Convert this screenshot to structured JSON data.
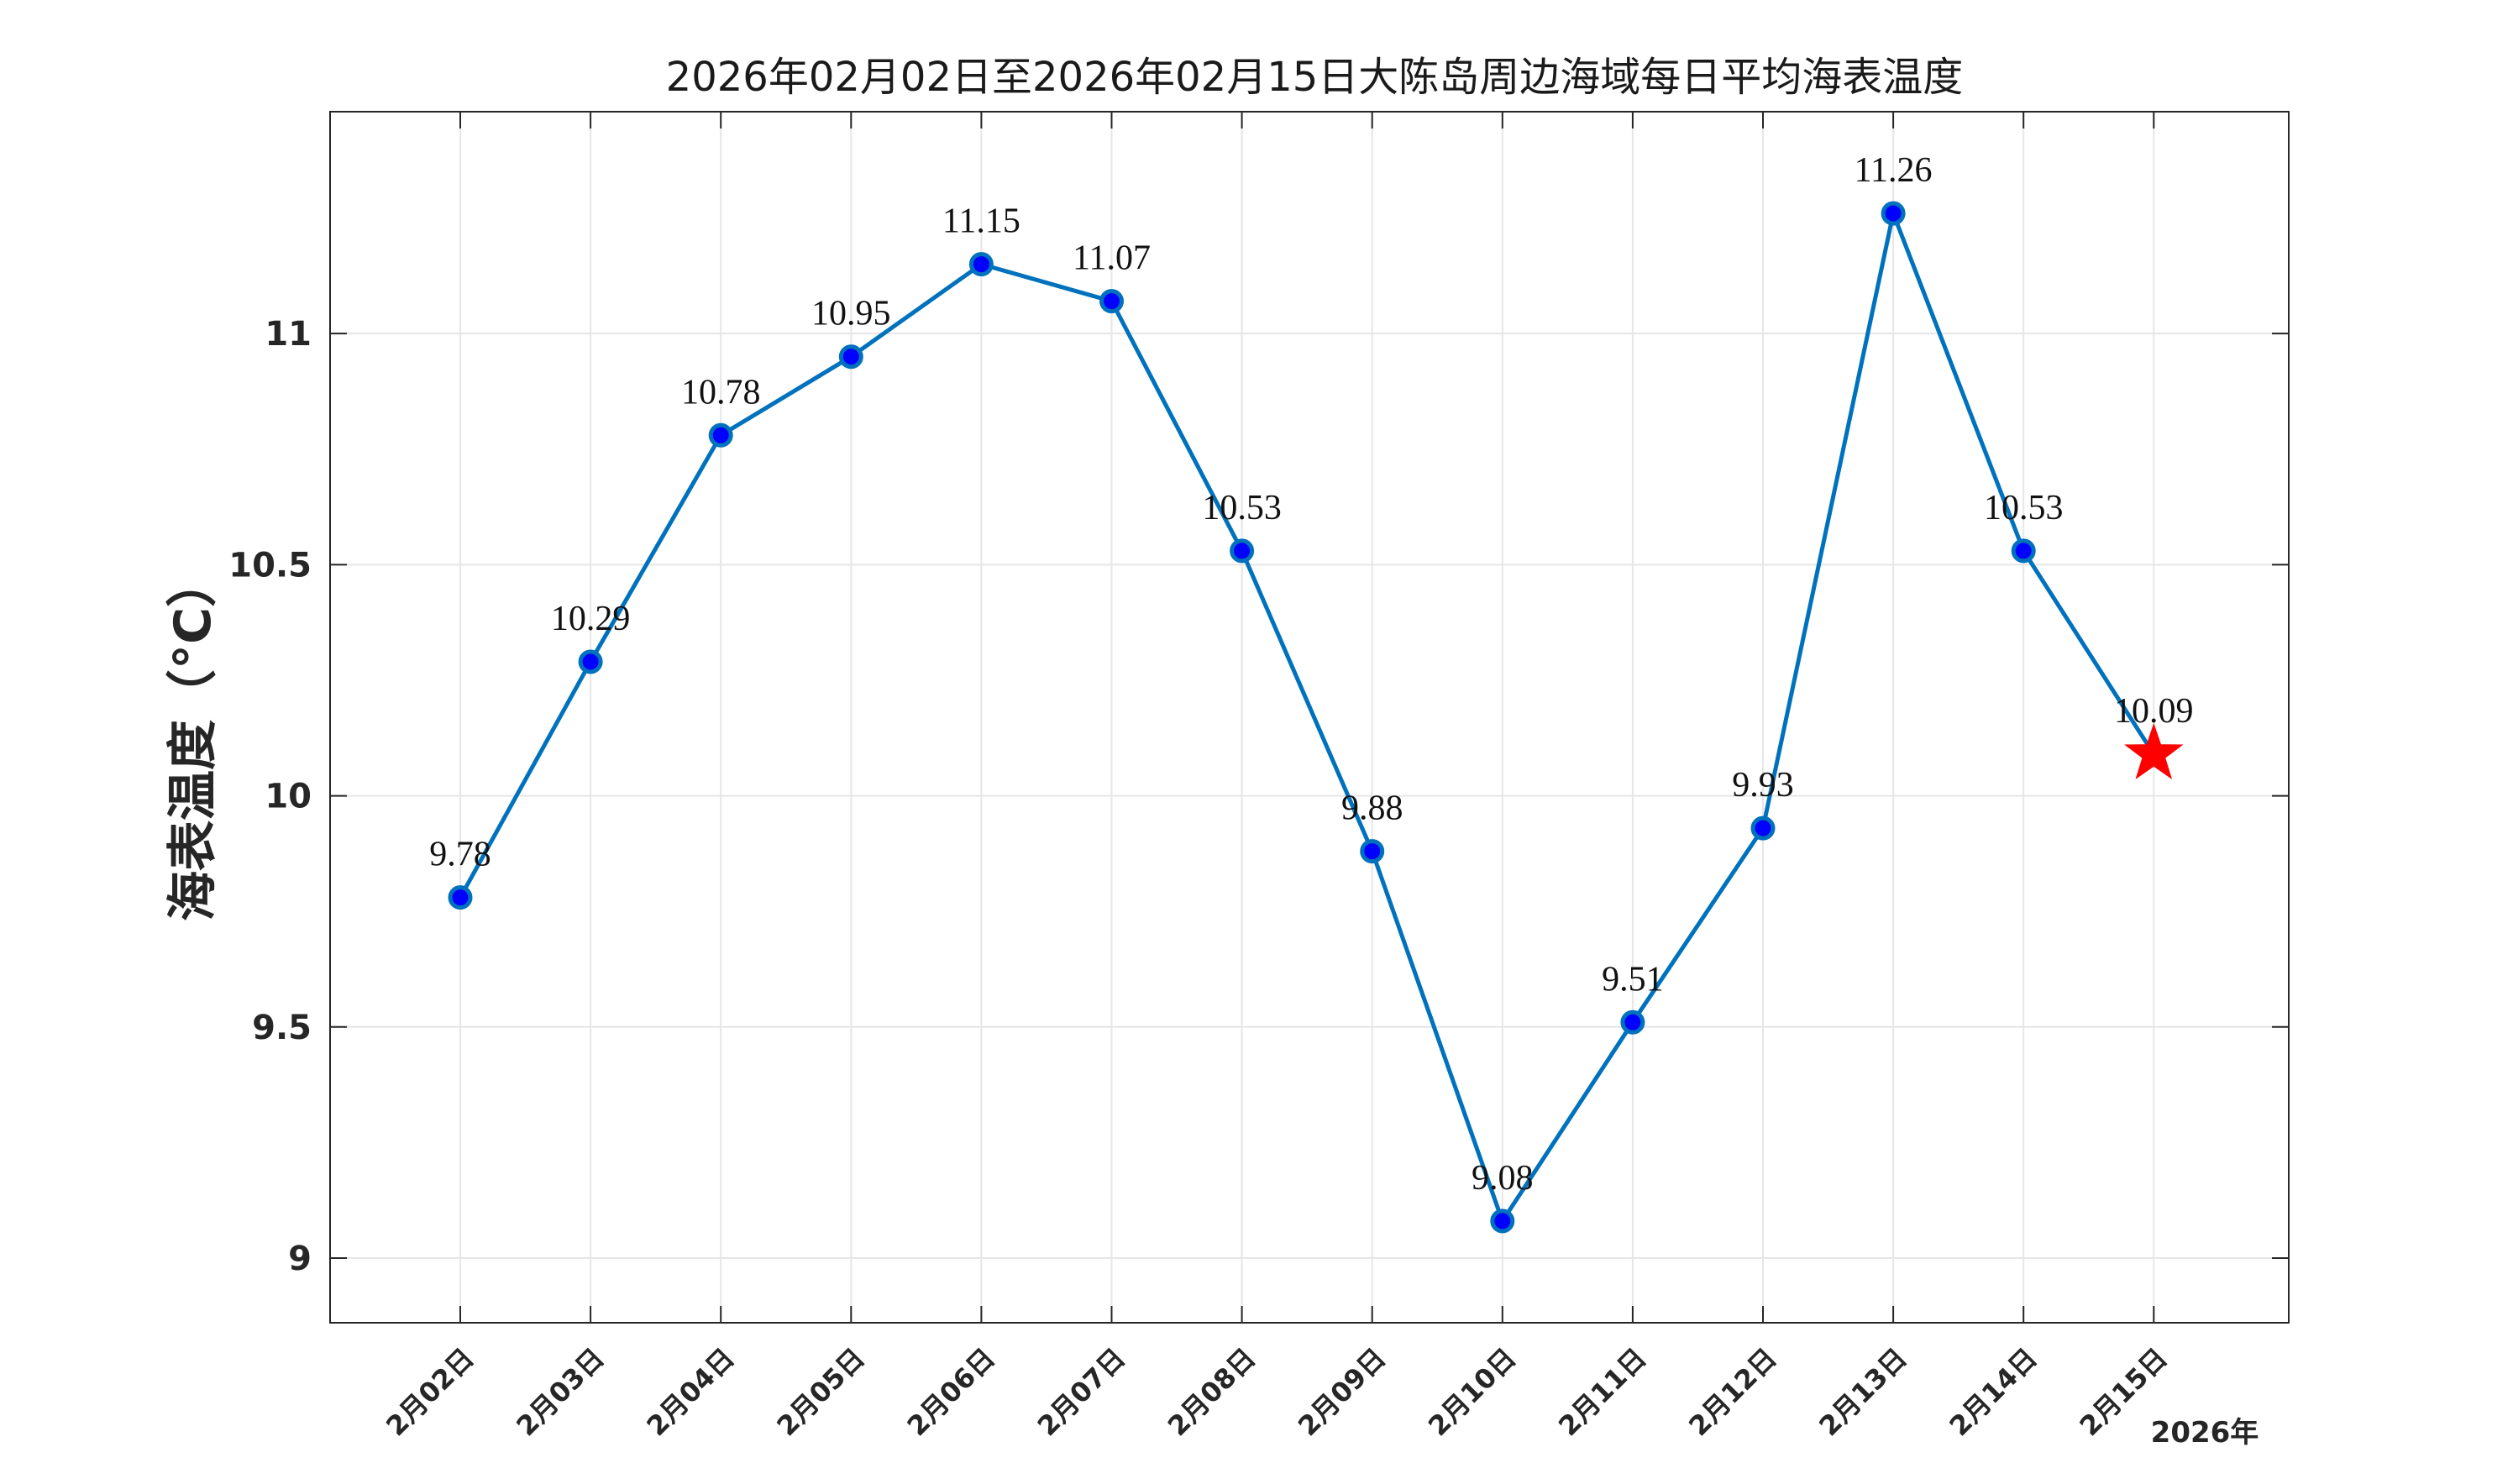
{
  "chart_data": {
    "type": "line",
    "title": "2026年02月02日至2026年02月15日大陈岛周边海域每日平均海表温度",
    "ylabel": "海表温度（°C）",
    "xlabel": "",
    "year_label": "2026年",
    "categories": [
      "2月02日",
      "2月03日",
      "2月04日",
      "2月05日",
      "2月06日",
      "2月07日",
      "2月08日",
      "2月09日",
      "2月10日",
      "2月11日",
      "2月12日",
      "2月13日",
      "2月14日",
      "2月15日"
    ],
    "series": [
      {
        "values": [
          9.78,
          10.29,
          10.78,
          10.95,
          11.15,
          11.07,
          10.53,
          9.88,
          9.08,
          9.51,
          9.93,
          11.26,
          10.53,
          10.09
        ],
        "data_labels": [
          "9.78",
          "10.29",
          "10.78",
          "10.95",
          "11.15",
          "11.07",
          "10.53",
          "9.88",
          "9.08",
          "9.51",
          "9.93",
          "11.26",
          "10.53",
          "10.09"
        ]
      }
    ],
    "highlight_index": 13,
    "ylim": [
      8.86,
      11.48
    ],
    "yticks": [
      9,
      9.5,
      10,
      10.5,
      11
    ],
    "ytick_labels": [
      "9",
      "9.5",
      "10",
      "10.5",
      "11"
    ],
    "grid": true,
    "colors": {
      "line": "#0072bd",
      "marker_fill": "#0000ff",
      "marker_edge": "#0072bd",
      "highlight": "#ff0000",
      "grid": "#e6e6e6",
      "axes": "#262626"
    }
  }
}
